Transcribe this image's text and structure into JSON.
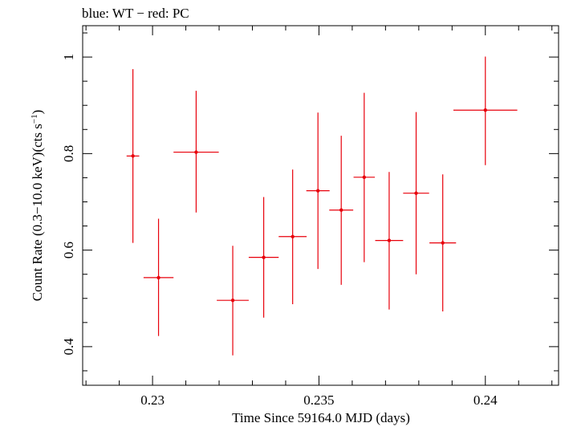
{
  "chart_data": {
    "type": "scatter",
    "title": "blue: WT − red: PC",
    "xlabel": "Time Since 59164.0 MJD (days)",
    "ylabel_main": "Count Rate (0.3−10.0 keV)(cts s",
    "ylabel_sup": "−1",
    "ylabel_close": ")",
    "xlim": [
      0.2279,
      0.2422
    ],
    "ylim": [
      0.32,
      1.065
    ],
    "xticks": [
      {
        "value": 0.23,
        "label": "0.23"
      },
      {
        "value": 0.235,
        "label": "0.235"
      },
      {
        "value": 0.24,
        "label": "0.24"
      }
    ],
    "yticks": [
      {
        "value": 0.4,
        "label": "0.4"
      },
      {
        "value": 0.6,
        "label": "0.6"
      },
      {
        "value": 0.8,
        "label": "0.8"
      },
      {
        "value": 1.0,
        "label": "1"
      }
    ],
    "grid": false,
    "legend": "none",
    "series": [
      {
        "color": "#e8000b",
        "points": [
          {
            "x": 0.22941,
            "xerr_lo": 0.00019,
            "xerr_hi": 0.00019,
            "y": 0.795,
            "y_lo": 0.615,
            "y_hi": 0.975
          },
          {
            "x": 0.23018,
            "xerr_lo": 0.00045,
            "xerr_hi": 0.00045,
            "y": 0.543,
            "y_lo": 0.422,
            "y_hi": 0.665
          },
          {
            "x": 0.23131,
            "xerr_lo": 0.00068,
            "xerr_hi": 0.00068,
            "y": 0.803,
            "y_lo": 0.678,
            "y_hi": 0.93
          },
          {
            "x": 0.23241,
            "xerr_lo": 0.00048,
            "xerr_hi": 0.00048,
            "y": 0.496,
            "y_lo": 0.382,
            "y_hi": 0.609
          },
          {
            "x": 0.23334,
            "xerr_lo": 0.00045,
            "xerr_hi": 0.00045,
            "y": 0.585,
            "y_lo": 0.46,
            "y_hi": 0.71
          },
          {
            "x": 0.23421,
            "xerr_lo": 0.00042,
            "xerr_hi": 0.00042,
            "y": 0.628,
            "y_lo": 0.488,
            "y_hi": 0.767
          },
          {
            "x": 0.23497,
            "xerr_lo": 0.00035,
            "xerr_hi": 0.00035,
            "y": 0.723,
            "y_lo": 0.561,
            "y_hi": 0.885
          },
          {
            "x": 0.23567,
            "xerr_lo": 0.00036,
            "xerr_hi": 0.00036,
            "y": 0.683,
            "y_lo": 0.528,
            "y_hi": 0.837
          },
          {
            "x": 0.23636,
            "xerr_lo": 0.00032,
            "xerr_hi": 0.00032,
            "y": 0.751,
            "y_lo": 0.575,
            "y_hi": 0.926
          },
          {
            "x": 0.23711,
            "xerr_lo": 0.00042,
            "xerr_hi": 0.00042,
            "y": 0.62,
            "y_lo": 0.477,
            "y_hi": 0.762
          },
          {
            "x": 0.23792,
            "xerr_lo": 0.00039,
            "xerr_hi": 0.00039,
            "y": 0.718,
            "y_lo": 0.55,
            "y_hi": 0.886
          },
          {
            "x": 0.23872,
            "xerr_lo": 0.0004,
            "xerr_hi": 0.0004,
            "y": 0.615,
            "y_lo": 0.473,
            "y_hi": 0.757
          },
          {
            "x": 0.24,
            "xerr_lo": 0.00096,
            "xerr_hi": 0.00096,
            "y": 0.89,
            "y_lo": 0.776,
            "y_hi": 1.001
          }
        ]
      }
    ]
  }
}
